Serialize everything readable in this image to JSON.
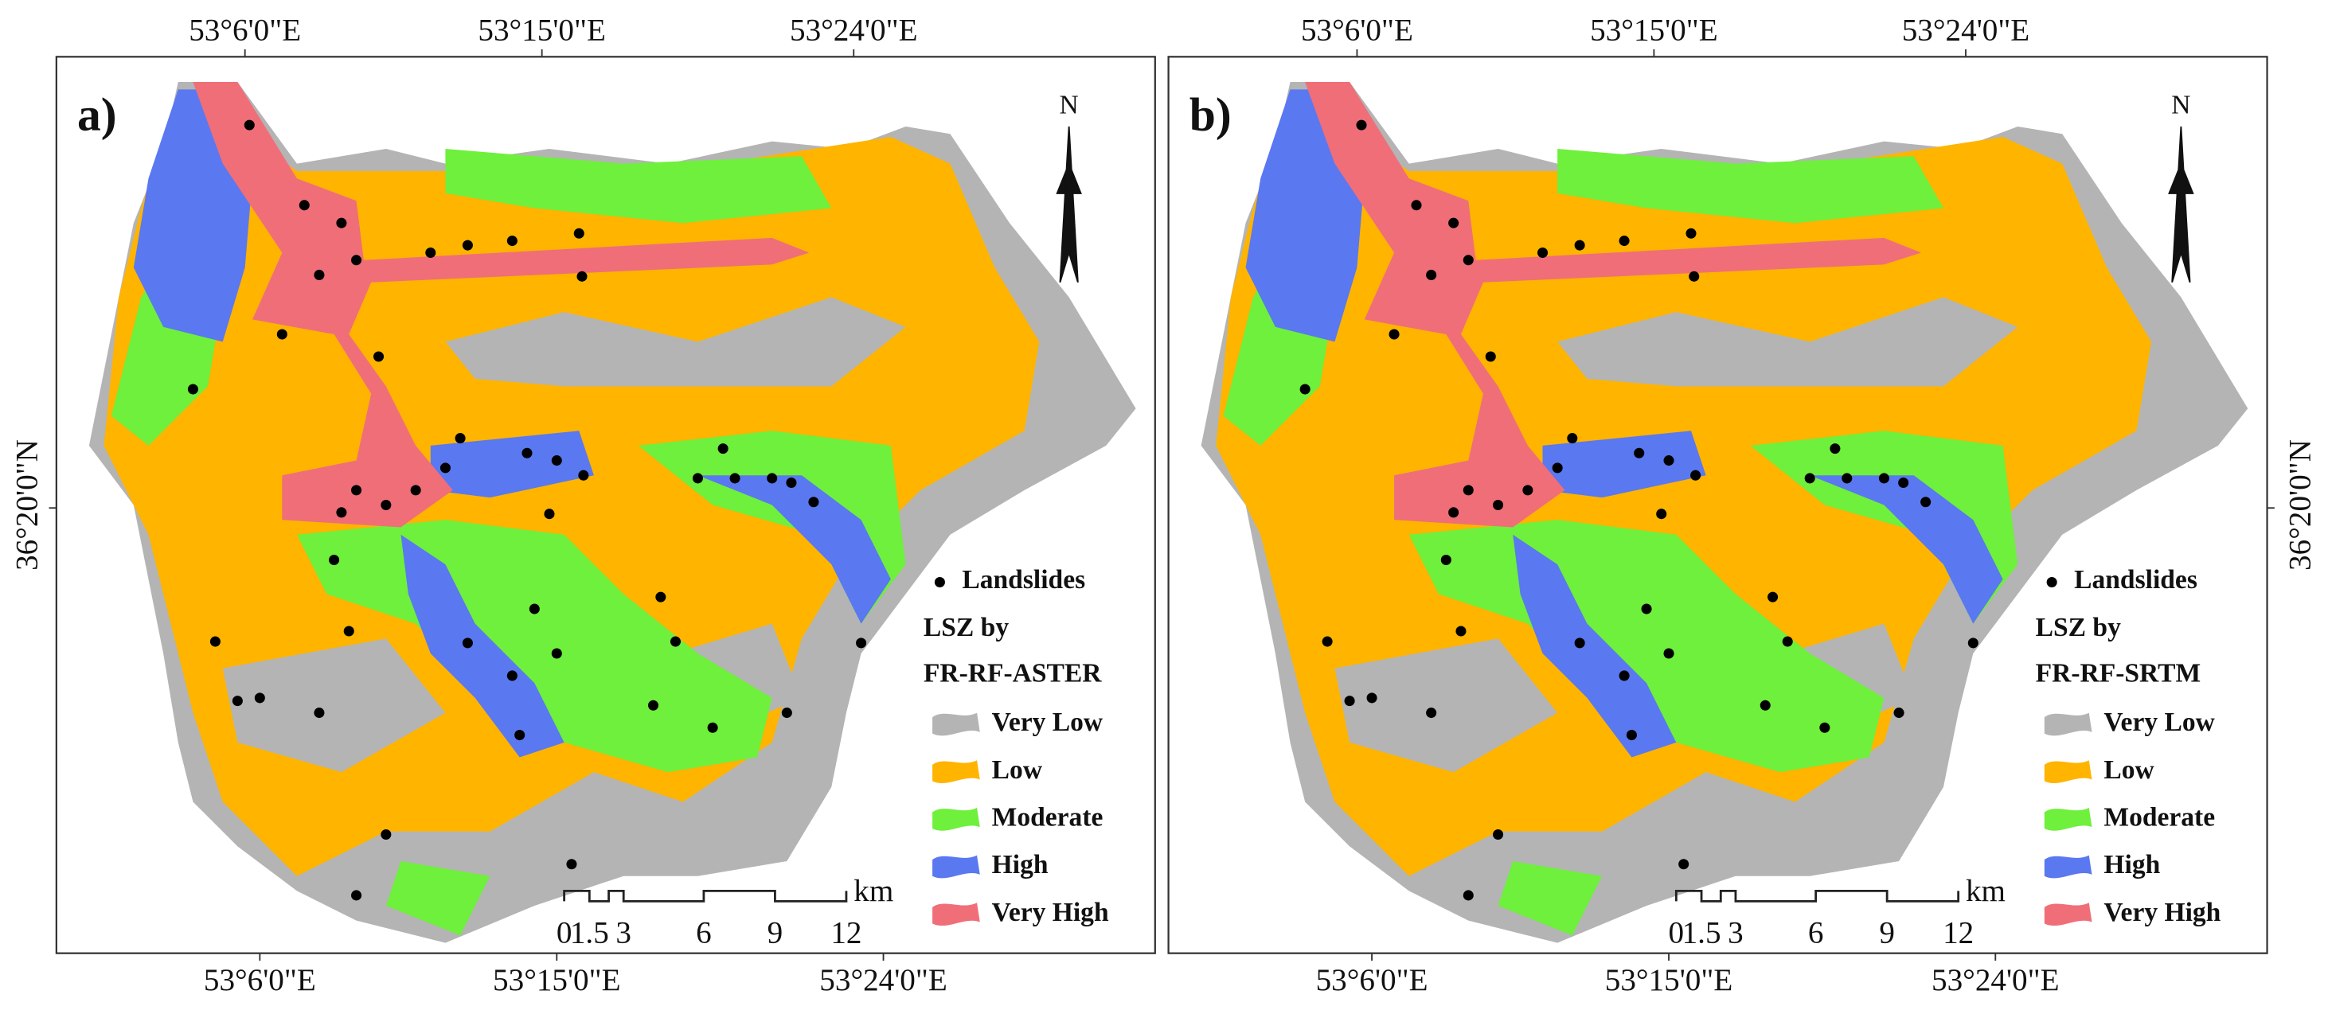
{
  "panels": [
    {
      "label": "a)",
      "top_coords": [
        "53°6'0\"E",
        "53°15'0\"E",
        "53°24'0\"E"
      ],
      "bottom_coords": [
        "53°6'0\"E",
        "53°15'0\"E",
        "53°24'0\"E"
      ],
      "lat_label": "36°20'0\"N",
      "north": "N",
      "legend": {
        "points": "Landslides",
        "title": [
          "LSZ by",
          "FR-RF-ASTER"
        ],
        "classes": [
          {
            "name": "Very Low",
            "color": "#b4b4b4"
          },
          {
            "name": "Low",
            "color": "#ffb400"
          },
          {
            "name": "Moderate",
            "color": "#6ef03c"
          },
          {
            "name": "High",
            "color": "#5a78f0"
          },
          {
            "name": "Very High",
            "color": "#f06e78"
          }
        ]
      },
      "scale": {
        "unit": "km",
        "ticks": [
          "0",
          "1.5",
          "3",
          "6",
          "9",
          "12"
        ]
      }
    },
    {
      "label": "b)",
      "top_coords": [
        "53°6'0\"E",
        "53°15'0\"E",
        "53°24'0\"E"
      ],
      "bottom_coords": [
        "53°6'0\"E",
        "53°15'0\"E",
        "53°24'0\"E"
      ],
      "lat_label": "36°20'0\"N",
      "north": "N",
      "legend": {
        "points": "Landslides",
        "title": [
          "LSZ by",
          "FR-RF-SRTM"
        ],
        "classes": [
          {
            "name": "Very Low",
            "color": "#b4b4b4"
          },
          {
            "name": "Low",
            "color": "#ffb400"
          },
          {
            "name": "Moderate",
            "color": "#6ef03c"
          },
          {
            "name": "High",
            "color": "#5a78f0"
          },
          {
            "name": "Very High",
            "color": "#f06e78"
          }
        ]
      },
      "scale": {
        "unit": "km",
        "ticks": [
          "0",
          "1.5",
          "3",
          "6",
          "9",
          "12"
        ]
      }
    }
  ]
}
